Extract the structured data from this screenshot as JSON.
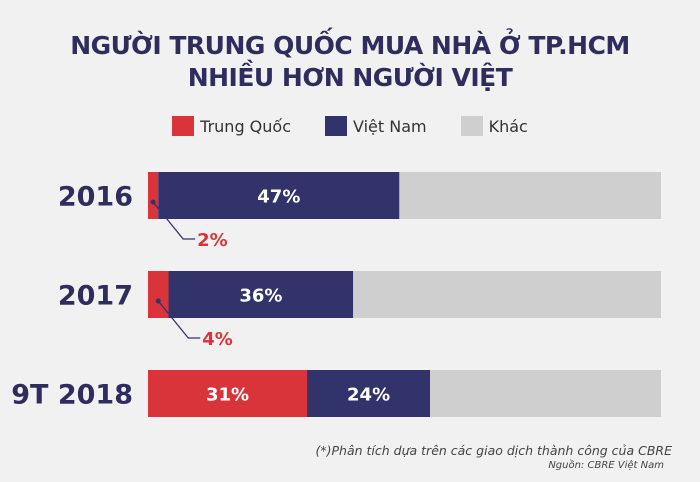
{
  "chart_data": {
    "type": "bar",
    "orientation": "horizontal-stacked",
    "title": "NGƯỜI TRUNG QUỐC MUA NHÀ Ở TP.HCM NHIỀU HƠN NGƯỜI VIỆT",
    "title_lines": [
      "NGƯỜI TRUNG QUỐC MUA NHÀ Ở TP.HCM",
      "NHIỀU HƠN NGƯỜI VIỆT"
    ],
    "categories": [
      "2016",
      "2017",
      "9T 2018"
    ],
    "series": [
      {
        "name": "Trung Quốc",
        "color": "#d8343a",
        "values": [
          2,
          4,
          31
        ],
        "labels": [
          "2%",
          "4%",
          "31%"
        ]
      },
      {
        "name": "Việt Nam",
        "color": "#33336b",
        "values": [
          47,
          36,
          24
        ],
        "labels": [
          "47%",
          "36%",
          "24%"
        ]
      },
      {
        "name": "Khác",
        "color": "#cfcfcf",
        "values": [
          51,
          60,
          45
        ]
      }
    ],
    "xlim": [
      0,
      100
    ],
    "legend_position": "top",
    "note": "(*)Phân tích dựa trên các giao dịch thành công của CBRE",
    "source": "Nguồn: CBRE Việt Nam"
  }
}
